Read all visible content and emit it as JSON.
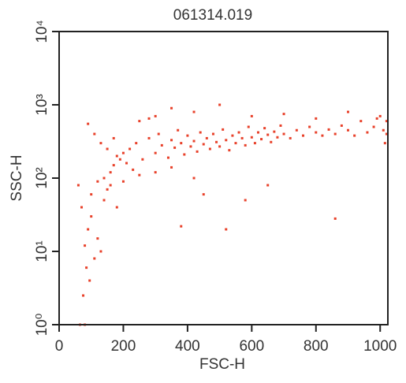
{
  "chart_data": {
    "type": "scatter",
    "title": "061314.019",
    "x_label": "FSC-H",
    "y_label": "SSC-H",
    "color": "#e8412a",
    "log_y": true,
    "xlim": [
      0,
      1024
    ],
    "ylim": [
      1,
      10000
    ],
    "xticks": [
      0,
      200,
      400,
      600,
      800,
      1000
    ],
    "yticks": [
      {
        "value": 1,
        "label": "10⁰"
      },
      {
        "value": 10,
        "label": "10¹"
      },
      {
        "value": 100,
        "label": "10²"
      },
      {
        "value": 1000,
        "label": "10³"
      },
      {
        "value": 10000,
        "label": "10⁴"
      }
    ],
    "x": [
      220,
      240,
      260,
      280,
      300,
      310,
      320,
      340,
      350,
      360,
      370,
      380,
      390,
      400,
      410,
      420,
      430,
      440,
      450,
      460,
      470,
      480,
      490,
      500,
      510,
      520,
      530,
      540,
      550,
      560,
      570,
      580,
      590,
      600,
      610,
      620,
      630,
      640,
      650,
      660,
      670,
      680,
      690,
      700,
      720,
      740,
      760,
      780,
      800,
      820,
      840,
      860,
      880,
      900,
      920,
      940,
      960,
      980,
      1000,
      1010,
      1020,
      1020,
      1015,
      990,
      300,
      350,
      420,
      500,
      600,
      700,
      800,
      900,
      250,
      280,
      250,
      300,
      350,
      420,
      450,
      520,
      580,
      380,
      860,
      650,
      200,
      230,
      60,
      70,
      80,
      90,
      100,
      110,
      120,
      130,
      140,
      150,
      160,
      170,
      180,
      190,
      100,
      120,
      140,
      160,
      95,
      85,
      75,
      65,
      80,
      90,
      110,
      130,
      150,
      170,
      200,
      210,
      180
    ],
    "values": [
      250,
      300,
      180,
      350,
      220,
      400,
      280,
      190,
      330,
      260,
      450,
      300,
      210,
      380,
      270,
      320,
      230,
      420,
      290,
      350,
      250,
      400,
      310,
      270,
      460,
      330,
      240,
      380,
      300,
      420,
      350,
      280,
      500,
      360,
      300,
      420,
      340,
      480,
      390,
      310,
      430,
      360,
      520,
      400,
      350,
      450,
      380,
      500,
      420,
      380,
      460,
      400,
      520,
      450,
      380,
      600,
      420,
      500,
      700,
      450,
      400,
      600,
      300,
      650,
      700,
      900,
      800,
      1000,
      700,
      750,
      650,
      800,
      600,
      650,
      110,
      120,
      140,
      100,
      60,
      20,
      50,
      22,
      28,
      80,
      90,
      130,
      80,
      40,
      12,
      20,
      30,
      8,
      15,
      10,
      50,
      70,
      120,
      150,
      200,
      180,
      60,
      90,
      100,
      80,
      4,
      6,
      2.5,
      1,
      1,
      550,
      400,
      300,
      250,
      350,
      220,
      160,
      40
    ]
  }
}
